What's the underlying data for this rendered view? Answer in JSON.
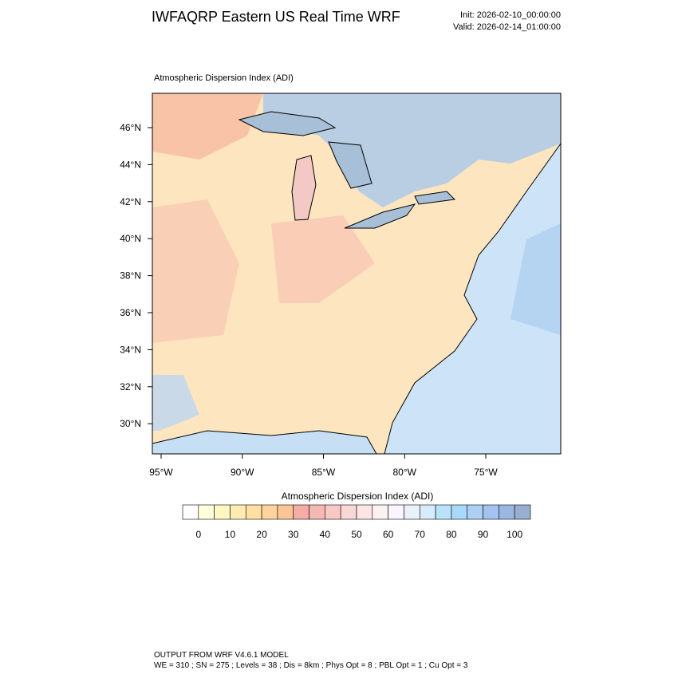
{
  "header": {
    "title": "IWFAQRP Eastern US Real Time WRF",
    "init": "Init: 2026-02-10_00:00:00",
    "valid": "Valid: 2026-02-14_01:00:00"
  },
  "map": {
    "title": "Atmospheric Dispersion Index   (ADI)",
    "lat_ticks": [
      {
        "value": 46,
        "label": "46°N"
      },
      {
        "value": 44,
        "label": "44°N"
      },
      {
        "value": 42,
        "label": "42°N"
      },
      {
        "value": 40,
        "label": "40°N"
      },
      {
        "value": 38,
        "label": "38°N"
      },
      {
        "value": 36,
        "label": "36°N"
      },
      {
        "value": 34,
        "label": "34°N"
      },
      {
        "value": 32,
        "label": "32°N"
      },
      {
        "value": 30,
        "label": "30°N"
      }
    ],
    "lon_ticks": [
      {
        "value": -95,
        "label": "95°W"
      },
      {
        "value": -90,
        "label": "90°W"
      },
      {
        "value": -85,
        "label": "85°W"
      },
      {
        "value": -80,
        "label": "80°W"
      },
      {
        "value": -75,
        "label": "75°W"
      }
    ]
  },
  "colorbar": {
    "title": "Atmospheric Dispersion Index  (ADI)",
    "levels": [
      0,
      5,
      10,
      15,
      20,
      25,
      30,
      35,
      40,
      45,
      50,
      55,
      60,
      65,
      70,
      75,
      80,
      85,
      90,
      95,
      100
    ],
    "colors": [
      "#ffffff",
      "#ffffdc",
      "#fff6c2",
      "#ffecb2",
      "#ffe0a2",
      "#ffd49c",
      "#fcc597",
      "#f5aca2",
      "#f6b8b2",
      "#f8c8c4",
      "#fad8d6",
      "#fce5e4",
      "#fdf1f1",
      "#f8f6fc",
      "#e9f1fb",
      "#d6ebfb",
      "#b8e3fb",
      "#a8d9f9",
      "#aecff6",
      "#a2c2ef",
      "#9ab6e3",
      "#98afcf"
    ]
  },
  "footer": {
    "line1": "OUTPUT FROM WRF V4.6.1 MODEL",
    "line2": "WE = 310 ; SN = 275 ; Levels = 38 ; Dis = 8km ; Phys Opt = 8 ; PBL Opt = 1 ; Cu Opt = 3"
  }
}
